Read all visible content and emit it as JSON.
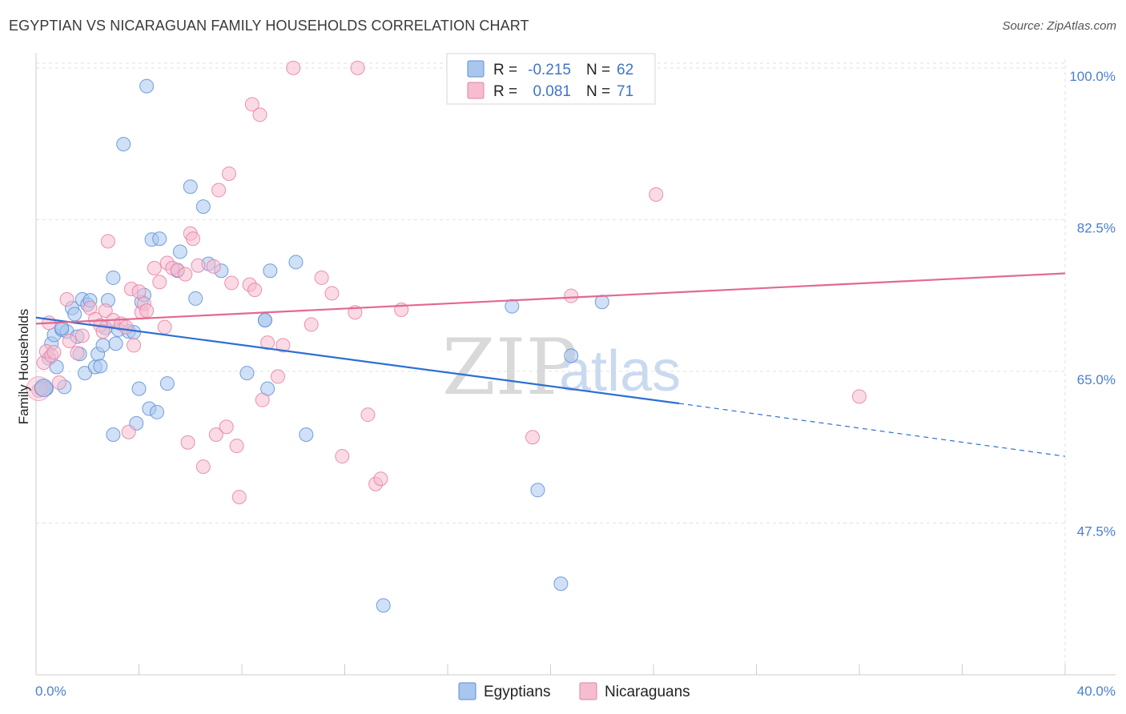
{
  "title": "EGYPTIAN VS NICARAGUAN FAMILY HOUSEHOLDS CORRELATION CHART",
  "source": "Source: ZipAtlas.com",
  "watermark": {
    "zip": "ZIP",
    "atlas": "atlas"
  },
  "colors": {
    "egyptian_fill": "#a9c6ef",
    "egyptian_stroke": "#5b8fd6",
    "egyptian_line": "#2e6fd1",
    "nicaraguan_fill": "#f6bcd0",
    "nicaraguan_stroke": "#e77fa3",
    "nicaraguan_line": "#e2698f",
    "tick_label": "#4a7fd0"
  },
  "legend": {
    "rows": [
      {
        "r_label": "R = ",
        "r_value": "-0.215",
        "n_label": "N = ",
        "n_value": "62"
      },
      {
        "r_label": "R = ",
        "r_value": "0.081",
        "n_label": "N = ",
        "n_value": "71"
      }
    ]
  },
  "chart_data": {
    "type": "scatter",
    "title": "EGYPTIAN VS NICARAGUAN FAMILY HOUSEHOLDS CORRELATION CHART",
    "xlabel": "",
    "ylabel": "Family Households",
    "xlim": [
      0,
      40
    ],
    "ylim": [
      30,
      101
    ],
    "x_tick_labels": {
      "min": "0.0%",
      "max": "40.0%"
    },
    "y_ticks": [
      {
        "value": 100,
        "label": "100.0%"
      },
      {
        "value": 82.5,
        "label": "82.5%"
      },
      {
        "value": 65,
        "label": "65.0%"
      },
      {
        "value": 47.5,
        "label": "47.5%"
      }
    ],
    "grid": true,
    "series": [
      {
        "name": "Egyptians",
        "R": -0.215,
        "N": 62,
        "trend": {
          "x0": 0,
          "y0": 71.2,
          "x1": 25,
          "y1": 61.3,
          "dash_to_x": 40,
          "dash_to_y": 55.2
        },
        "points": [
          [
            0.2,
            63.0
          ],
          [
            0.3,
            63.2
          ],
          [
            0.4,
            63.0
          ],
          [
            0.5,
            66.5
          ],
          [
            0.6,
            68.2
          ],
          [
            0.7,
            69.2
          ],
          [
            0.8,
            65.5
          ],
          [
            1.0,
            69.8
          ],
          [
            1.1,
            63.2
          ],
          [
            1.2,
            69.6
          ],
          [
            1.4,
            72.3
          ],
          [
            1.5,
            71.6
          ],
          [
            1.6,
            69.0
          ],
          [
            1.7,
            67.0
          ],
          [
            1.8,
            73.3
          ],
          [
            1.9,
            64.8
          ],
          [
            2.0,
            72.7
          ],
          [
            2.1,
            73.2
          ],
          [
            2.3,
            65.5
          ],
          [
            2.4,
            67.0
          ],
          [
            2.5,
            65.6
          ],
          [
            2.6,
            68.0
          ],
          [
            2.7,
            70.0
          ],
          [
            2.8,
            73.2
          ],
          [
            3.0,
            75.8
          ],
          [
            3.1,
            68.2
          ],
          [
            3.2,
            69.8
          ],
          [
            3.4,
            91.2
          ],
          [
            3.6,
            69.6
          ],
          [
            3.8,
            69.5
          ],
          [
            3.9,
            59.0
          ],
          [
            4.0,
            63.0
          ],
          [
            4.1,
            73.0
          ],
          [
            4.2,
            73.8
          ],
          [
            4.3,
            97.9
          ],
          [
            4.4,
            60.7
          ],
          [
            4.5,
            80.2
          ],
          [
            4.7,
            60.3
          ],
          [
            4.8,
            80.3
          ],
          [
            5.1,
            63.6
          ],
          [
            5.5,
            76.6
          ],
          [
            5.6,
            78.8
          ],
          [
            6.0,
            86.3
          ],
          [
            6.2,
            73.4
          ],
          [
            6.5,
            84.0
          ],
          [
            6.7,
            77.4
          ],
          [
            7.2,
            76.6
          ],
          [
            8.2,
            64.8
          ],
          [
            8.9,
            70.9
          ],
          [
            8.9,
            70.9
          ],
          [
            9.1,
            76.6
          ],
          [
            10.1,
            77.6
          ],
          [
            10.5,
            57.7
          ],
          [
            3.0,
            57.7
          ],
          [
            18.5,
            72.5
          ],
          [
            19.5,
            51.3
          ],
          [
            20.4,
            40.5
          ],
          [
            20.8,
            66.8
          ],
          [
            22.0,
            73.0
          ],
          [
            13.5,
            38.0
          ],
          [
            9.0,
            63.0
          ],
          [
            1.0,
            70.0
          ]
        ]
      },
      {
        "name": "Nicaraguans",
        "R": 0.081,
        "N": 71,
        "trend": {
          "x0": 0,
          "y0": 70.5,
          "x1": 40,
          "y1": 76.3
        },
        "points": [
          [
            0.1,
            62.8
          ],
          [
            0.2,
            63.0
          ],
          [
            0.3,
            66.0
          ],
          [
            0.4,
            67.3
          ],
          [
            0.5,
            70.6
          ],
          [
            0.6,
            66.8
          ],
          [
            0.7,
            67.2
          ],
          [
            0.9,
            63.7
          ],
          [
            1.2,
            73.3
          ],
          [
            1.3,
            68.5
          ],
          [
            1.6,
            67.1
          ],
          [
            1.8,
            69.1
          ],
          [
            2.1,
            72.3
          ],
          [
            2.3,
            71.0
          ],
          [
            2.5,
            70.3
          ],
          [
            2.6,
            69.6
          ],
          [
            2.7,
            72.0
          ],
          [
            2.8,
            80.0
          ],
          [
            3.0,
            70.9
          ],
          [
            3.3,
            70.5
          ],
          [
            3.5,
            70.1
          ],
          [
            3.6,
            58.0
          ],
          [
            3.7,
            74.5
          ],
          [
            3.8,
            68.0
          ],
          [
            4.0,
            74.2
          ],
          [
            4.1,
            71.8
          ],
          [
            4.2,
            72.8
          ],
          [
            4.3,
            72.0
          ],
          [
            4.6,
            76.9
          ],
          [
            4.8,
            75.3
          ],
          [
            5.0,
            70.1
          ],
          [
            5.1,
            77.5
          ],
          [
            5.3,
            76.9
          ],
          [
            5.5,
            76.7
          ],
          [
            5.8,
            76.2
          ],
          [
            5.9,
            56.8
          ],
          [
            6.0,
            80.9
          ],
          [
            6.1,
            80.3
          ],
          [
            6.3,
            77.2
          ],
          [
            6.5,
            54.0
          ],
          [
            6.9,
            77.1
          ],
          [
            7.0,
            57.7
          ],
          [
            7.1,
            85.9
          ],
          [
            7.4,
            58.6
          ],
          [
            7.5,
            87.8
          ],
          [
            7.6,
            75.2
          ],
          [
            7.8,
            56.4
          ],
          [
            7.9,
            50.5
          ],
          [
            8.3,
            75.0
          ],
          [
            8.4,
            95.8
          ],
          [
            8.5,
            74.4
          ],
          [
            8.7,
            94.6
          ],
          [
            8.8,
            61.7
          ],
          [
            9.0,
            68.3
          ],
          [
            9.4,
            64.4
          ],
          [
            9.6,
            68.0
          ],
          [
            10.0,
            100.0
          ],
          [
            10.7,
            70.4
          ],
          [
            11.1,
            75.8
          ],
          [
            11.5,
            74.0
          ],
          [
            11.9,
            55.2
          ],
          [
            12.4,
            71.8
          ],
          [
            12.5,
            100.0
          ],
          [
            12.9,
            60.0
          ],
          [
            13.2,
            52.0
          ],
          [
            13.4,
            52.6
          ],
          [
            14.2,
            72.1
          ],
          [
            19.3,
            57.4
          ],
          [
            20.8,
            73.7
          ],
          [
            24.1,
            85.4
          ],
          [
            32.0,
            62.1
          ]
        ]
      }
    ]
  },
  "bottom_legend": [
    {
      "label": "Egyptians"
    },
    {
      "label": "Nicaraguans"
    }
  ]
}
